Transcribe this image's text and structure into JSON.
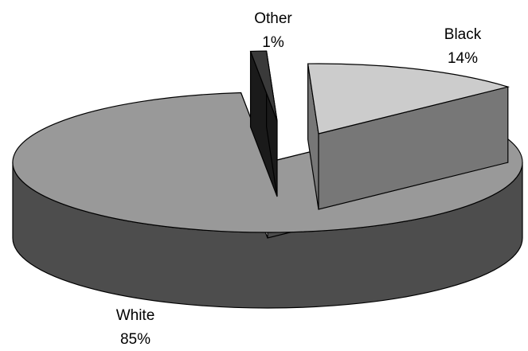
{
  "chart_data": {
    "type": "pie",
    "title": "",
    "style": "3d-exploded",
    "legend": "none",
    "slices": [
      {
        "label": "White",
        "value": 85,
        "value_label": "85%",
        "top_color": "#999999",
        "side_color": "#4d4d4d",
        "label_anchor": "bottom-left"
      },
      {
        "label": "Black",
        "value": 14,
        "value_label": "14%",
        "top_color": "#cccccc",
        "side_color": "#777777",
        "label_anchor": "top-right"
      },
      {
        "label": "Other",
        "value": 1,
        "value_label": "1%",
        "top_color": "#3a3a3a",
        "side_color": "#1a1a1a",
        "label_anchor": "top"
      }
    ]
  }
}
